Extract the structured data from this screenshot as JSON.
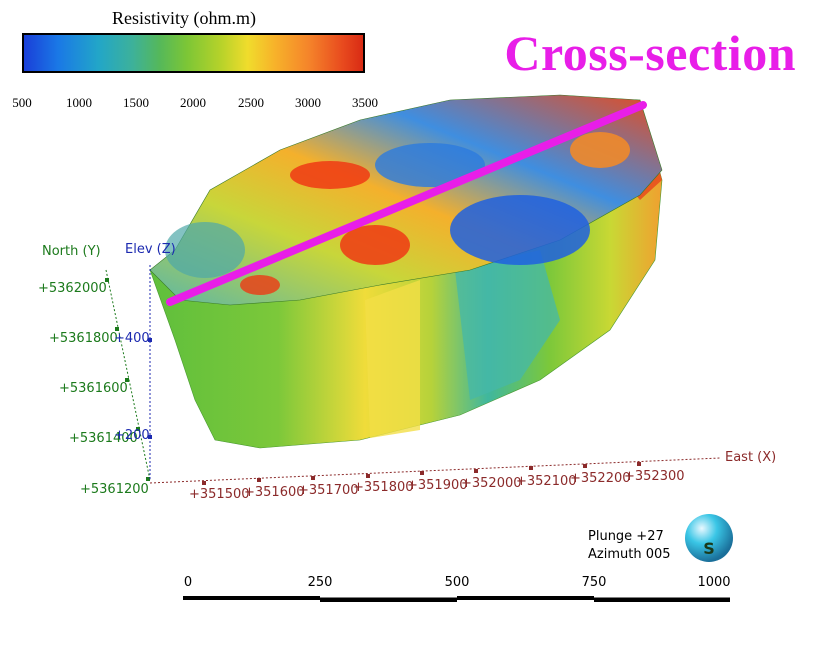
{
  "colorbar": {
    "title": "Resistivity (ohm.m)",
    "ticks": [
      "500",
      "1000",
      "1500",
      "2000",
      "2500",
      "3000",
      "3500"
    ]
  },
  "title": "Cross-section",
  "axes": {
    "north_label": "North (Y)",
    "elev_label": "Elev (Z)",
    "east_label": "East (X)",
    "north_ticks": [
      "+5362000",
      "+5361800",
      "+5361600",
      "+5361400",
      "+5361200"
    ],
    "elev_ticks": [
      "+400",
      "+200"
    ],
    "east_ticks": [
      "+351500",
      "+351600",
      "+351700",
      "+351800",
      "+351900",
      "+352000",
      "+352100",
      "+352200",
      "+352300"
    ]
  },
  "orientation": {
    "plunge": "Plunge +27",
    "azimuth": "Azimuth 005",
    "compass_letter": "S"
  },
  "scale_bar": {
    "ticks": [
      "0",
      "250",
      "500",
      "750",
      "1000"
    ]
  },
  "colors": {
    "section_line": "#e81ee8",
    "north_axis": "#1c7a1c",
    "elev_axis": "#1c2ab0",
    "east_axis": "#8b2a2a"
  }
}
